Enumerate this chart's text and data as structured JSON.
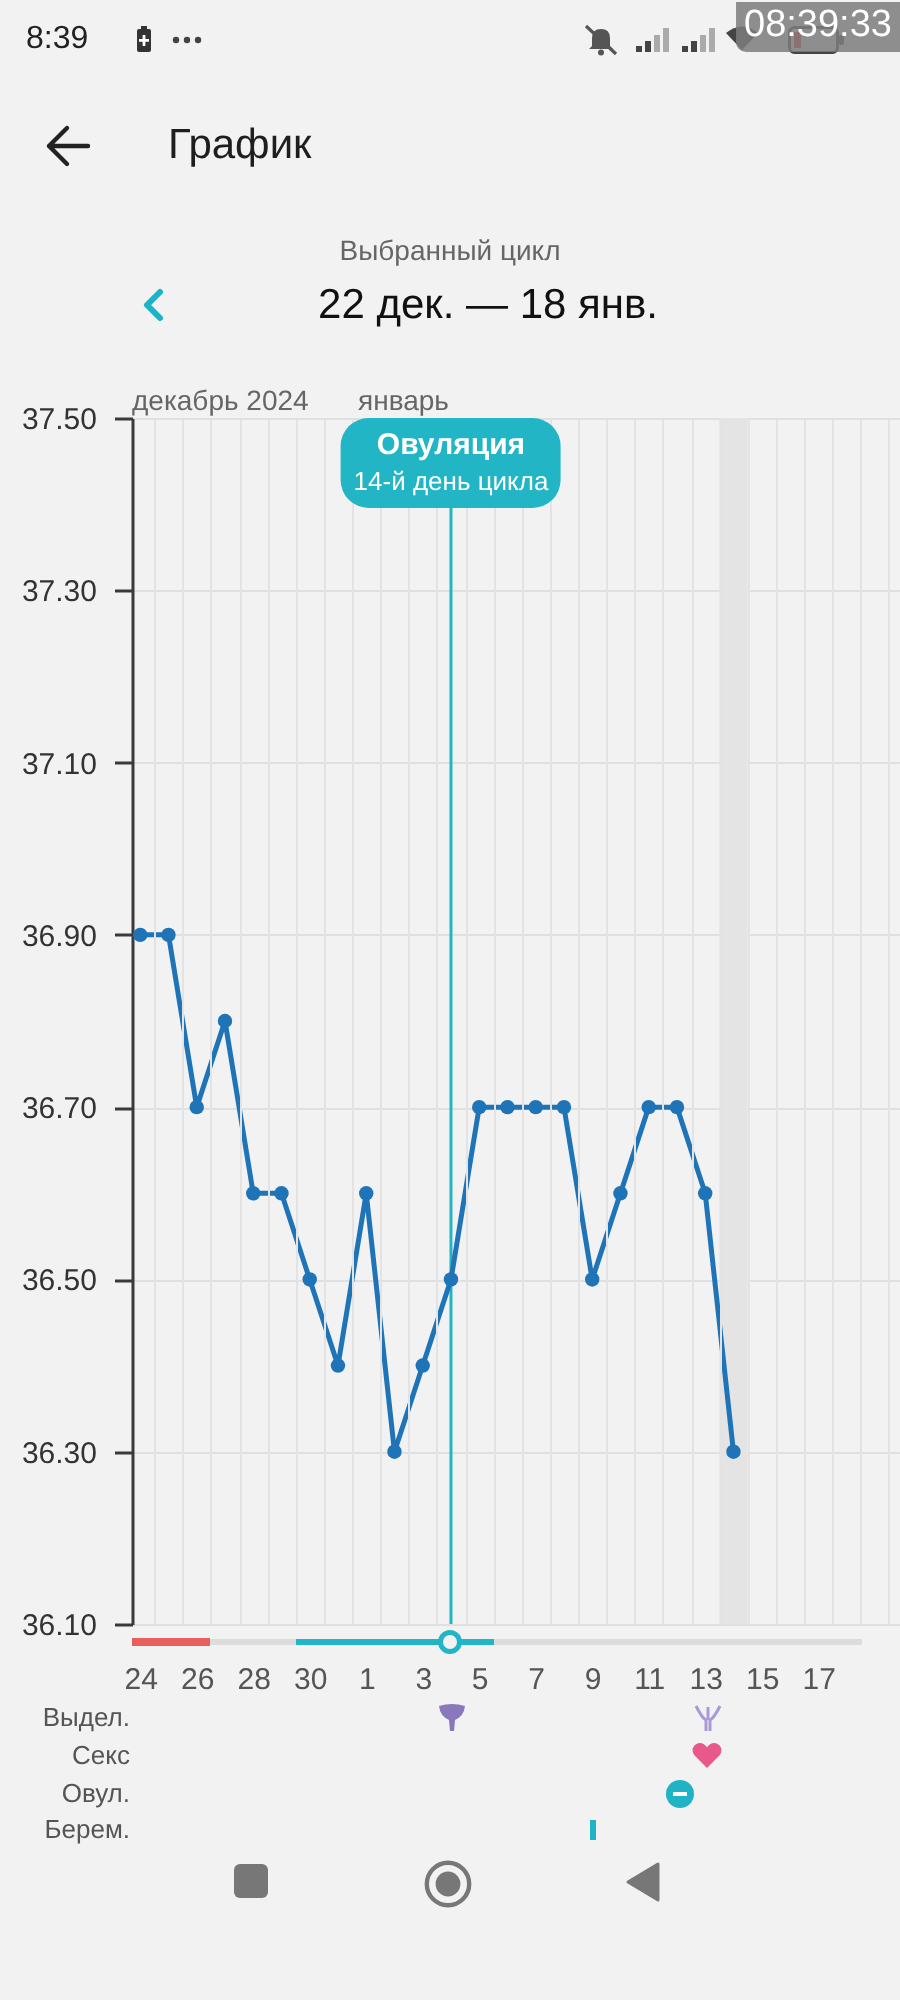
{
  "chart_data": {
    "type": "line",
    "title": "График",
    "subtitle": "Выбранный цикл",
    "x": [
      "2024-12-24",
      "2024-12-25",
      "2024-12-26",
      "2024-12-27",
      "2024-12-28",
      "2024-12-29",
      "2024-12-30",
      "2024-12-31",
      "2025-01-01",
      "2025-01-02",
      "2025-01-03",
      "2025-01-04",
      "2025-01-05",
      "2025-01-06",
      "2025-01-07",
      "2025-01-08",
      "2025-01-09",
      "2025-01-10",
      "2025-01-11",
      "2025-01-12",
      "2025-01-13",
      "2025-01-14"
    ],
    "values": [
      36.9,
      36.9,
      36.7,
      36.8,
      36.6,
      36.6,
      36.5,
      36.4,
      36.6,
      36.3,
      36.4,
      36.5,
      36.7,
      36.7,
      36.7,
      36.7,
      36.5,
      36.6,
      36.7,
      36.7,
      36.6,
      36.3
    ],
    "color": "#1f74b8",
    "marker": "circle",
    "xlim": [
      "2024-12-23T17:00",
      "2025-01-19T21:30"
    ],
    "xticks": [
      {
        "value": "2024-12-24",
        "label": "24"
      },
      {
        "value": "2024-12-24T12:00",
        "label": null
      },
      {
        "value": "2024-12-25T12:00",
        "label": null
      },
      {
        "value": "2024-12-26",
        "label": "26"
      },
      {
        "value": "2024-12-26T12:00",
        "label": null
      },
      {
        "value": "2024-12-27T12:00",
        "label": null
      },
      {
        "value": "2024-12-28",
        "label": "28"
      },
      {
        "value": "2024-12-28T12:00",
        "label": null
      },
      {
        "value": "2024-12-29T12:00",
        "label": null
      },
      {
        "value": "2024-12-30",
        "label": "30"
      },
      {
        "value": "2024-12-30T12:00",
        "label": null
      },
      {
        "value": "2024-12-31T12:00",
        "label": null
      },
      {
        "value": "2025-01-01",
        "label": "1"
      },
      {
        "value": "2025-01-01T12:00",
        "label": null
      },
      {
        "value": "2025-01-02T12:00",
        "label": null
      },
      {
        "value": "2025-01-03",
        "label": "3"
      },
      {
        "value": "2025-01-03T12:00",
        "label": null
      },
      {
        "value": "2025-01-04T12:00",
        "label": null
      },
      {
        "value": "2025-01-05",
        "label": "5"
      },
      {
        "value": "2025-01-05T12:00",
        "label": null
      },
      {
        "value": "2025-01-06T12:00",
        "label": null
      },
      {
        "value": "2025-01-07",
        "label": "7"
      },
      {
        "value": "2025-01-07T12:00",
        "label": null
      },
      {
        "value": "2025-01-08T12:00",
        "label": null
      },
      {
        "value": "2025-01-09",
        "label": "9"
      },
      {
        "value": "2025-01-09T12:00",
        "label": null
      },
      {
        "value": "2025-01-10T12:00",
        "label": null
      },
      {
        "value": "2025-01-11",
        "label": "11"
      },
      {
        "value": "2025-01-11T12:00",
        "label": null
      },
      {
        "value": "2025-01-12T12:00",
        "label": null
      },
      {
        "value": "2025-01-13",
        "label": "13"
      },
      {
        "value": "2025-01-13T12:00",
        "label": null
      },
      {
        "value": "2025-01-14T12:00",
        "label": null
      },
      {
        "value": "2025-01-15",
        "label": "15"
      },
      {
        "value": "2025-01-15T12:00",
        "label": null
      },
      {
        "value": "2025-01-16T12:00",
        "label": null
      },
      {
        "value": "2025-01-17",
        "label": "17"
      },
      {
        "value": "2025-01-17T12:00",
        "label": null
      },
      {
        "value": "2025-01-18T12:00",
        "label": null
      },
      {
        "value": "2025-01-19T12:00",
        "label": null
      }
    ],
    "ylim": [
      36.1,
      37.5
    ],
    "yticks": [
      {
        "value": 36.1,
        "label": "36.10"
      },
      {
        "value": 36.3,
        "label": "36.30"
      },
      {
        "value": 36.5,
        "label": "36.50"
      },
      {
        "value": 36.7,
        "label": "36.70"
      },
      {
        "value": 36.9,
        "label": "36.90"
      },
      {
        "value": 37.1,
        "label": "37.10"
      },
      {
        "value": 37.3,
        "label": "37.30"
      },
      {
        "value": 37.5,
        "label": "37.50"
      }
    ],
    "grid": true,
    "ref_lines": [
      {
        "axis": "x",
        "value": "2025-01-04",
        "label": "Овуляция",
        "color": "#22b5c6"
      }
    ],
    "bands": [
      {
        "axis": "x",
        "from": "2025-01-13T12:00",
        "to": "2025-01-14T12:00",
        "color": "#e4e4e4"
      }
    ],
    "annotations": [
      "22 дек. — 18 янв.",
      "декабрь 2024",
      "январь",
      "Выдел.",
      "Секс",
      "Овул.",
      "Берем.",
      "8:39",
      "08:39:33",
      {
        "text": "14-й день цикла",
        "x": "2025-01-04"
      }
    ]
  }
}
